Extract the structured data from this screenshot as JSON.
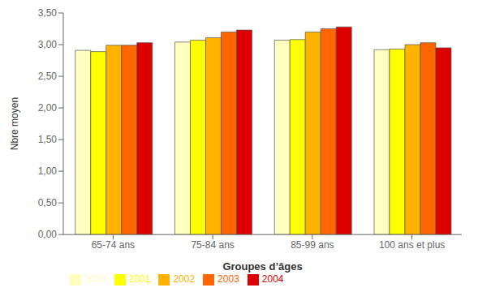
{
  "chart_data": {
    "type": "bar",
    "xlabel": "Groupes d’âges",
    "ylabel": "Nbre moyen",
    "categories": [
      "65-74 ans",
      "75-84 ans",
      "85-99 ans",
      "100 ans et plus"
    ],
    "series": [
      {
        "name": "2000",
        "color": "#FFFFC0",
        "values": [
          2.91,
          3.04,
          3.07,
          2.92
        ]
      },
      {
        "name": "2001",
        "color": "#FFFF00",
        "values": [
          2.89,
          3.07,
          3.08,
          2.93
        ]
      },
      {
        "name": "2002",
        "color": "#FFB300",
        "values": [
          2.99,
          3.11,
          3.2,
          3.0
        ]
      },
      {
        "name": "2003",
        "color": "#FF6600",
        "values": [
          2.99,
          3.2,
          3.25,
          3.03
        ]
      },
      {
        "name": "2004",
        "color": "#DD0000",
        "values": [
          3.03,
          3.23,
          3.28,
          2.95
        ]
      }
    ],
    "ylim": [
      0.0,
      3.5
    ],
    "yticks": [
      {
        "value": 0.0,
        "label": "0,00"
      },
      {
        "value": 0.5,
        "label": "0,50"
      },
      {
        "value": 1.0,
        "label": "1,00"
      },
      {
        "value": 1.5,
        "label": "1,50"
      },
      {
        "value": 2.0,
        "label": "2,00"
      },
      {
        "value": 2.5,
        "label": "2,50"
      },
      {
        "value": 3.0,
        "label": "3,00"
      },
      {
        "value": 3.5,
        "label": "3,50"
      }
    ],
    "grid": false,
    "legend": "lower left"
  }
}
